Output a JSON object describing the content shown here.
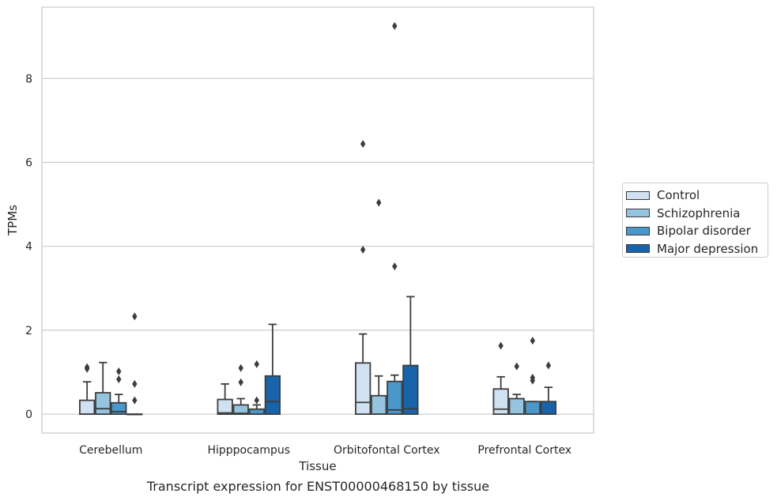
{
  "chart_data": {
    "type": "box",
    "title": "",
    "caption": "Transcript expression for ENST00000468150 by tissue",
    "xlabel": "Tissue",
    "ylabel": "TPMs",
    "ylim": [
      -0.45,
      9.7
    ],
    "yticks": [
      0,
      2,
      4,
      6,
      8
    ],
    "grid": true,
    "legend_position": "right",
    "categories": [
      "Cerebellum",
      "Hipppocampus",
      "Orbitofontal Cortex",
      "Prefrontal Cortex"
    ],
    "series": [
      {
        "name": "Control",
        "color": "#d0e1f2",
        "boxes": [
          {
            "whisker_low": 0,
            "q1": 0,
            "median": 0,
            "q3": 0.33,
            "whisker_high": 0.77,
            "outliers": [
              1.08,
              1.12
            ]
          },
          {
            "whisker_low": 0,
            "q1": 0,
            "median": 0.03,
            "q3": 0.35,
            "whisker_high": 0.72,
            "outliers": []
          },
          {
            "whisker_low": 0,
            "q1": 0,
            "median": 0.28,
            "q3": 1.22,
            "whisker_high": 1.91,
            "outliers": [
              3.92,
              6.44
            ]
          },
          {
            "whisker_low": 0,
            "q1": 0,
            "median": 0.12,
            "q3": 0.6,
            "whisker_high": 0.89,
            "outliers": [
              1.63
            ]
          }
        ]
      },
      {
        "name": "Schizophrenia",
        "color": "#94c4df",
        "boxes": [
          {
            "whisker_low": 0,
            "q1": 0,
            "median": 0.13,
            "q3": 0.51,
            "whisker_high": 1.23,
            "outliers": []
          },
          {
            "whisker_low": 0,
            "q1": 0,
            "median": 0.02,
            "q3": 0.22,
            "whisker_high": 0.37,
            "outliers": [
              0.76,
              1.1
            ]
          },
          {
            "whisker_low": 0,
            "q1": 0,
            "median": 0,
            "q3": 0.44,
            "whisker_high": 0.91,
            "outliers": [
              5.04
            ]
          },
          {
            "whisker_low": 0,
            "q1": 0,
            "median": 0,
            "q3": 0.37,
            "whisker_high": 0.47,
            "outliers": [
              1.14
            ]
          }
        ]
      },
      {
        "name": "Bipolar disorder",
        "color": "#4a98c9",
        "boxes": [
          {
            "whisker_low": 0,
            "q1": 0,
            "median": 0.06,
            "q3": 0.27,
            "whisker_high": 0.47,
            "outliers": [
              0.83,
              1.02
            ]
          },
          {
            "whisker_low": 0,
            "q1": 0,
            "median": 0,
            "q3": 0.12,
            "whisker_high": 0.22,
            "outliers": [
              0.33,
              1.19
            ]
          },
          {
            "whisker_low": 0,
            "q1": 0,
            "median": 0.1,
            "q3": 0.78,
            "whisker_high": 0.93,
            "outliers": [
              3.52,
              9.25
            ]
          },
          {
            "whisker_low": 0,
            "q1": 0,
            "median": 0,
            "q3": 0.3,
            "whisker_high": 0.3,
            "outliers": [
              0.8,
              0.87,
              1.75
            ]
          }
        ]
      },
      {
        "name": "Major depression",
        "color": "#1764ab",
        "boxes": [
          {
            "whisker_low": 0,
            "q1": 0,
            "median": 0,
            "q3": 0,
            "whisker_high": 0,
            "outliers": [
              0.33,
              0.72,
              2.33
            ]
          },
          {
            "whisker_low": 0,
            "q1": 0,
            "median": 0.3,
            "q3": 0.91,
            "whisker_high": 2.14,
            "outliers": []
          },
          {
            "whisker_low": 0,
            "q1": 0,
            "median": 0.13,
            "q3": 1.16,
            "whisker_high": 2.8,
            "outliers": []
          },
          {
            "whisker_low": 0,
            "q1": 0,
            "median": 0,
            "q3": 0.3,
            "whisker_high": 0.64,
            "outliers": [
              1.16
            ]
          }
        ]
      }
    ]
  }
}
